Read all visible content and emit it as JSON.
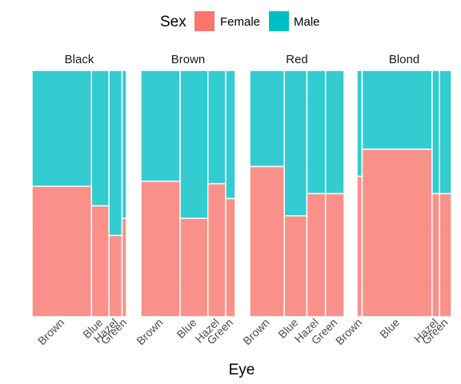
{
  "chart_data": {
    "type": "bar",
    "subtype": "mosaic",
    "xlabel": "Eye",
    "ylabel": "",
    "legend": {
      "title": "Sex",
      "placement": "top",
      "entries": [
        {
          "name": "Female",
          "color": "#F8766D"
        },
        {
          "name": "Male",
          "color": "#00BFC4"
        }
      ]
    },
    "ylim": [
      0,
      1
    ],
    "grid": true,
    "facets": [
      {
        "name": "Black",
        "categories": [
          "Brown",
          "Blue",
          "Hazel",
          "Green"
        ],
        "widths": [
          68,
          20,
          15,
          5
        ],
        "female_share": [
          0.53,
          0.45,
          0.33,
          0.4
        ]
      },
      {
        "name": "Brown",
        "categories": [
          "Brown",
          "Blue",
          "Hazel",
          "Green"
        ],
        "widths": [
          119,
          84,
          54,
          29
        ],
        "female_share": [
          0.55,
          0.4,
          0.54,
          0.48
        ]
      },
      {
        "name": "Red",
        "categories": [
          "Brown",
          "Blue",
          "Hazel",
          "Green"
        ],
        "widths": [
          26,
          17,
          14,
          14
        ],
        "female_share": [
          0.61,
          0.41,
          0.5,
          0.5
        ]
      },
      {
        "name": "Blond",
        "categories": [
          "Brown",
          "Blue",
          "Hazel",
          "Green"
        ],
        "widths": [
          7,
          94,
          10,
          16
        ],
        "female_share": [
          0.57,
          0.68,
          0.5,
          0.5
        ]
      }
    ]
  }
}
